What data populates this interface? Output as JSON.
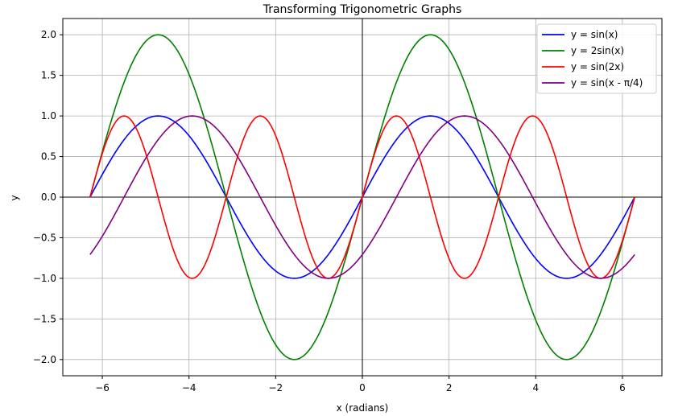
{
  "chart_data": {
    "type": "line",
    "title": "Transforming Trigonometric Graphs",
    "xlabel": "x (radians)",
    "ylabel": "y",
    "xlim": [
      -6.9115,
      6.9115
    ],
    "ylim": [
      -2.2,
      2.2
    ],
    "x_domain": [
      -6.2832,
      6.2832
    ],
    "xticks": [
      -6,
      -4,
      -2,
      0,
      2,
      4,
      6
    ],
    "xtick_labels": [
      "−6",
      "−4",
      "−2",
      "0",
      "2",
      "4",
      "6"
    ],
    "yticks": [
      -2.0,
      -1.5,
      -1.0,
      -0.5,
      0.0,
      0.5,
      1.0,
      1.5,
      2.0
    ],
    "ytick_labels": [
      "−2.0",
      "−1.5",
      "−1.0",
      "−0.5",
      "0.0",
      "0.5",
      "1.0",
      "1.5",
      "2.0"
    ],
    "grid": true,
    "zero_lines": true,
    "legend_position": "top-right",
    "series": [
      {
        "name": "y = sin(x)",
        "amplitude": 1,
        "frequency": 1,
        "phase": 0,
        "color": "#0000ff"
      },
      {
        "name": "y = 2sin(x)",
        "amplitude": 2,
        "frequency": 1,
        "phase": 0,
        "color": "#008000"
      },
      {
        "name": "y = sin(2x)",
        "amplitude": 1,
        "frequency": 2,
        "phase": 0,
        "color": "#ff0000"
      },
      {
        "name": "y = sin(x - π/4)",
        "amplitude": 1,
        "frequency": 1,
        "phase": -0.7854,
        "color": "#800080"
      }
    ]
  }
}
